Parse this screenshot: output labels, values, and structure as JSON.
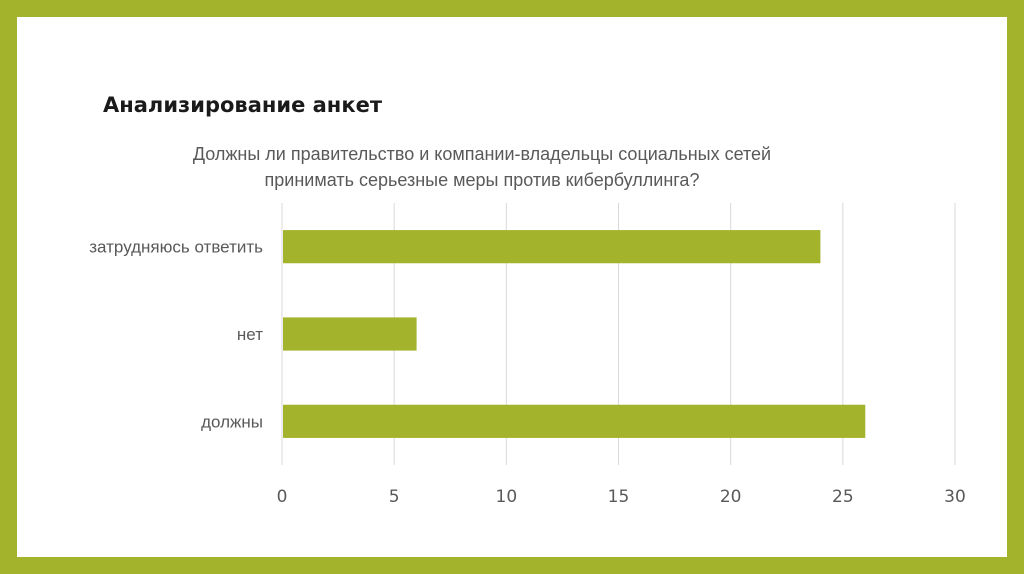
{
  "slide": {
    "heading": "Анализирование анкет"
  },
  "chart_data": {
    "type": "bar",
    "orientation": "horizontal",
    "title_line1": "Должны ли правительство и компании-владельцы социальных сетей",
    "title_line2": "принимать серьезные меры против кибербуллинга?",
    "categories": [
      "затрудняюсь ответить",
      "нет",
      "должны"
    ],
    "values": [
      24,
      6,
      26
    ],
    "xlim": [
      0,
      30
    ],
    "xticks": [
      0,
      5,
      10,
      15,
      20,
      25,
      30
    ],
    "tick_labels": [
      "0",
      "5",
      "10",
      "15",
      "20",
      "25",
      "30"
    ],
    "grid": true,
    "legend": "none",
    "bar_color": "#a3b42c",
    "grid_color": "#d9d9d9"
  }
}
